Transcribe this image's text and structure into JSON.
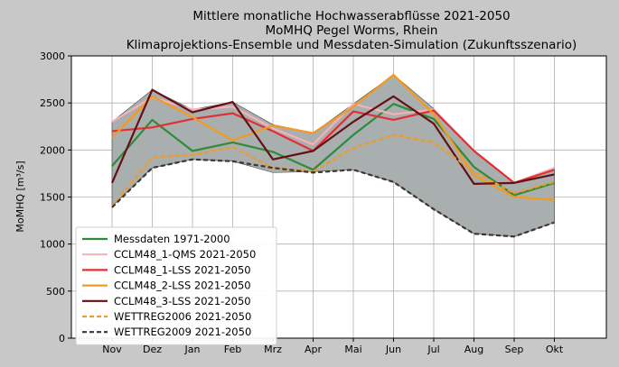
{
  "chart_data": {
    "type": "line",
    "title_lines": [
      "Mittlere monatliche Hochwasserabflüsse 2021-2050",
      "MoMHQ Pegel Worms, Rhein",
      "Klimaprojektions-Ensemble und Messdaten-Simulation (Zukunftsszenario)"
    ],
    "xlabel": "",
    "ylabel": "MoMHQ [m³/s]",
    "ylim": [
      0,
      3000
    ],
    "yticks": [
      0,
      500,
      1000,
      1500,
      2000,
      2500,
      3000
    ],
    "ytick_labels": [
      "0",
      "500",
      "1000",
      "1500",
      "2000",
      "2500",
      "3000"
    ],
    "categories": [
      "Nov",
      "Dez",
      "Jan",
      "Feb",
      "Mrz",
      "Apr",
      "Mai",
      "Jun",
      "Jul",
      "Aug",
      "Sep",
      "Okt"
    ],
    "grid": true,
    "legend_position": "lower-left",
    "envelope": {
      "color": "#a9aeae",
      "upper": [
        2300,
        2640,
        2430,
        2510,
        2270,
        2180,
        2490,
        2800,
        2440,
        1990,
        1650,
        1800
      ],
      "lower": [
        1400,
        1810,
        1900,
        1880,
        1760,
        1770,
        1790,
        1660,
        1370,
        1110,
        1080,
        1230
      ]
    },
    "series": [
      {
        "name": "Messdaten 1971-2000",
        "color": "#2e8b3a",
        "dash": "solid",
        "values": [
          1830,
          2320,
          1990,
          2080,
          1980,
          1790,
          2160,
          2490,
          2330,
          1820,
          1520,
          1650
        ]
      },
      {
        "name": "CCLM48_1-QMS 2021-2050",
        "color": "#f3b3b6",
        "dash": "solid",
        "values": [
          2300,
          2560,
          2430,
          2460,
          2230,
          2060,
          2490,
          2380,
          2430,
          1990,
          1650,
          1810
        ]
      },
      {
        "name": "CCLM48_1-LSS 2021-2050",
        "color": "#e03034",
        "dash": "solid",
        "values": [
          2200,
          2240,
          2330,
          2390,
          2200,
          1990,
          2410,
          2320,
          2420,
          1990,
          1650,
          1790
        ]
      },
      {
        "name": "CCLM48_2-LSS 2021-2050",
        "color": "#f39a22",
        "dash": "solid",
        "values": [
          2130,
          2570,
          2350,
          2100,
          2260,
          2180,
          2460,
          2800,
          2380,
          1730,
          1500,
          1470
        ]
      },
      {
        "name": "CCLM48_3-LSS 2021-2050",
        "color": "#661016",
        "dash": "solid",
        "values": [
          1650,
          2640,
          2400,
          2510,
          1900,
          1990,
          2300,
          2570,
          2280,
          1640,
          1650,
          1740
        ]
      },
      {
        "name": "WETTREG2006 2021-2050",
        "color": "#f39a22",
        "dash": "dashed",
        "values": [
          1400,
          1920,
          1950,
          2030,
          1810,
          1770,
          2020,
          2160,
          2080,
          1770,
          1540,
          1660
        ]
      },
      {
        "name": "WETTREG2009 2021-2050",
        "color": "#3d3530",
        "dash": "dashed",
        "values": [
          1390,
          1810,
          1900,
          1880,
          1810,
          1760,
          1790,
          1660,
          1370,
          1110,
          1080,
          1230
        ]
      }
    ]
  }
}
